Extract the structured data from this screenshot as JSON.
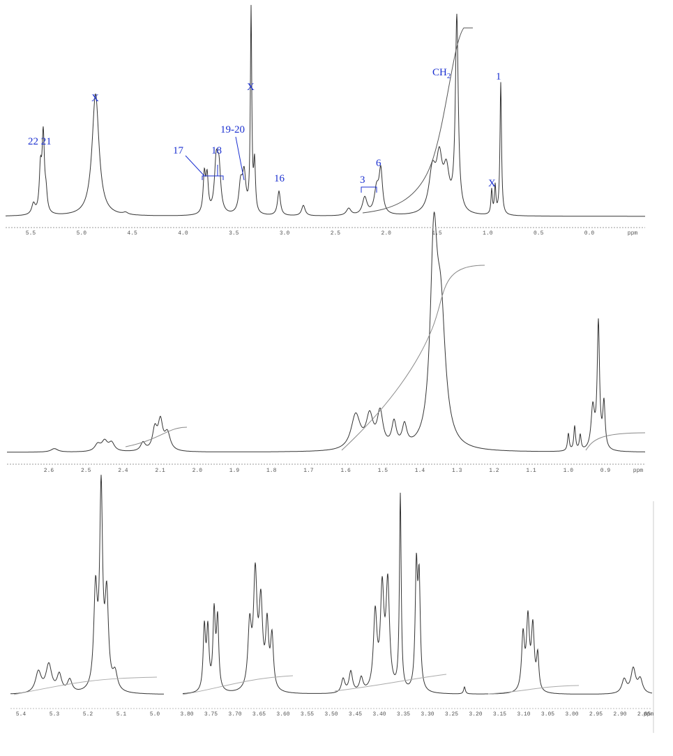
{
  "top": {
    "annotations": {
      "a2221": "22 21",
      "x1": "X",
      "a17": "17",
      "a18": "18",
      "a1920": "19-20",
      "x2": "X",
      "a16": "16",
      "a3": "3",
      "a6": "6",
      "ch2": {
        "main": "CH",
        "sub": "2"
      },
      "a1": "1",
      "x3": "X"
    },
    "ticks": [
      "5.5",
      "5.0",
      "4.5",
      "4.0",
      "3.5",
      "3.0",
      "2.5",
      "2.0",
      "1.5",
      "1.0",
      "0.5",
      "0.0"
    ],
    "unit": "ppm"
  },
  "middle": {
    "ticks": [
      "2.6",
      "2.5",
      "2.4",
      "2.1",
      "2.0",
      "1.9",
      "1.8",
      "1.7",
      "1.6",
      "1.5",
      "1.4",
      "1.3",
      "1.2",
      "1.1",
      "1.0",
      "0.9"
    ],
    "unit": "ppm"
  },
  "bottom": {
    "ticks": [
      "5.4",
      "5.3",
      "5.2",
      "5.1",
      "5.0",
      "3.80",
      "3.75",
      "3.70",
      "3.65",
      "3.60",
      "3.55",
      "3.50",
      "3.45",
      "3.40",
      "3.35",
      "3.30",
      "3.25",
      "3.20",
      "3.15",
      "3.10",
      "3.05",
      "3.00",
      "2.95",
      "2.90",
      "2.85"
    ],
    "unit": "ppm"
  }
}
